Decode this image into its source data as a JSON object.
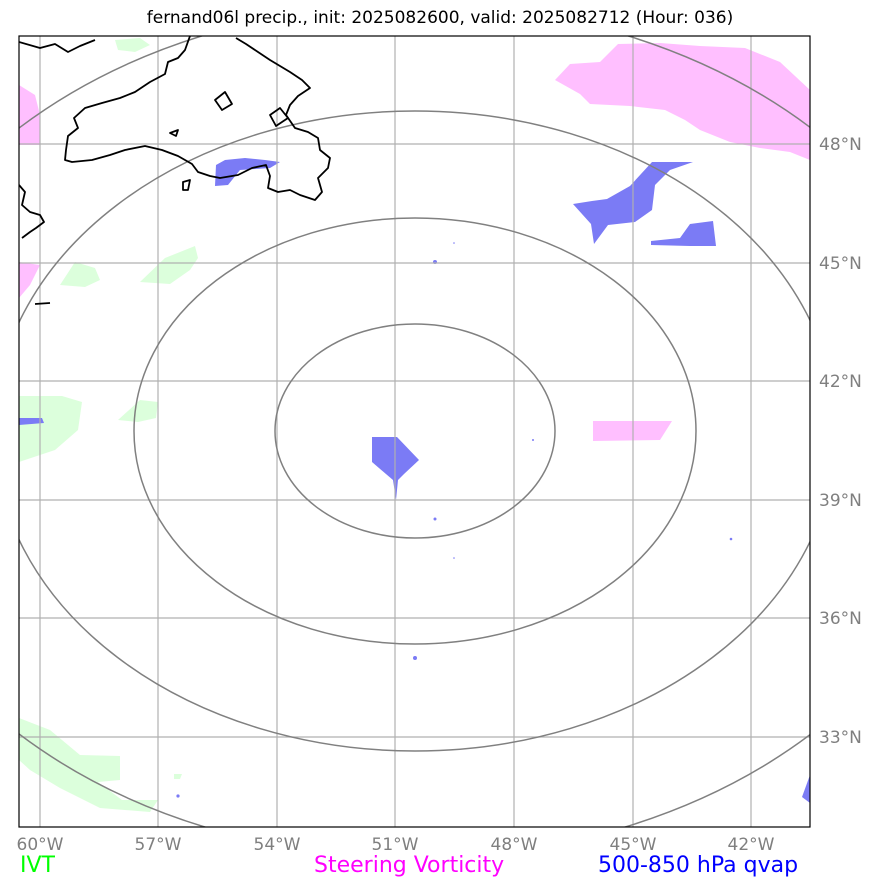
{
  "title": "fernand06l precip., init: 2025082600, valid: 2025082712 (Hour: 036)",
  "map": {
    "lon_ticks": [
      "60°W",
      "57°W",
      "54°W",
      "51°W",
      "48°W",
      "45°W",
      "42°W"
    ],
    "lat_ticks": [
      "48°N",
      "45°N",
      "42°N",
      "39°N",
      "36°N",
      "33°N"
    ]
  },
  "legend": {
    "ivt": {
      "label": "IVT",
      "color": "#00ff00"
    },
    "steering": {
      "label": "Steering Vorticity",
      "color": "#ff00ff"
    },
    "qvap": {
      "label": "500-850 hPa qvap",
      "color": "#0000ff"
    }
  },
  "colors": {
    "ivt_fill": "#dcffdc",
    "steering_fill": "#ffbfff",
    "qvap_fill": "#7b7bf5",
    "grid": "#b0b0b0",
    "range_rings": "#808080",
    "coast": "#000000"
  }
}
